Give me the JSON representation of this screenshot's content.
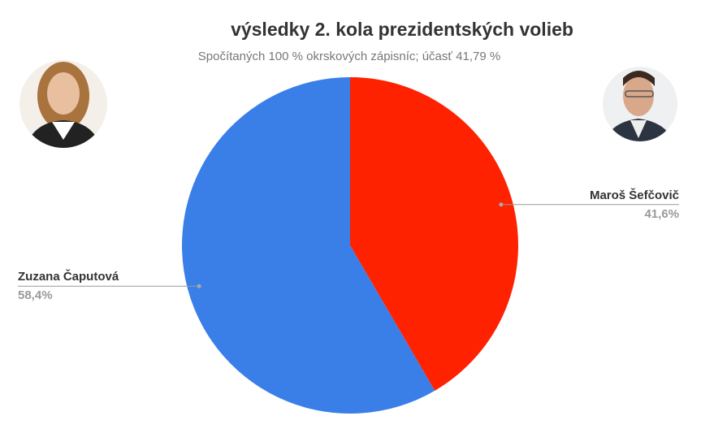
{
  "chart_data": {
    "type": "pie",
    "title": "výsledky 2. kola prezidentských volieb",
    "subtitle": "Spočítaných 100 % okrskových zápisníc; účasť 41,79 %",
    "categories": [
      "Maroš Šefčovič",
      "Zuzana Čaputová"
    ],
    "values": [
      41.6,
      58.4
    ],
    "value_labels": [
      "41,6%",
      "58,4%"
    ],
    "colors": [
      "#ff2200",
      "#3a7ee8"
    ]
  }
}
